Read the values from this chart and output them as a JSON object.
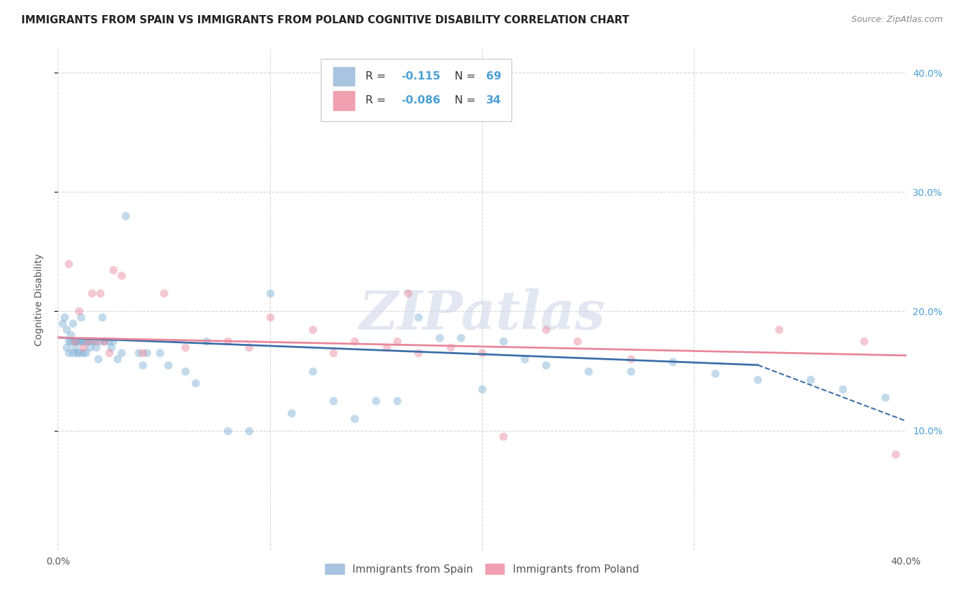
{
  "title": "IMMIGRANTS FROM SPAIN VS IMMIGRANTS FROM POLAND COGNITIVE DISABILITY CORRELATION CHART",
  "source": "Source: ZipAtlas.com",
  "ylabel": "Cognitive Disability",
  "right_yticks": [
    0.1,
    0.2,
    0.3,
    0.4
  ],
  "right_ytick_labels": [
    "10.0%",
    "20.0%",
    "30.0%",
    "40.0%"
  ],
  "xlim": [
    0.0,
    0.4
  ],
  "ylim": [
    0.0,
    0.42
  ],
  "spain_color": "#7bafd4",
  "poland_color": "#e8869a",
  "spain_line_color": "#3a6ea8",
  "poland_line_color": "#e8869a",
  "spain_scatter_x": [
    0.002,
    0.003,
    0.004,
    0.004,
    0.005,
    0.005,
    0.006,
    0.006,
    0.007,
    0.007,
    0.008,
    0.008,
    0.009,
    0.009,
    0.01,
    0.01,
    0.011,
    0.011,
    0.012,
    0.012,
    0.013,
    0.013,
    0.014,
    0.015,
    0.016,
    0.017,
    0.018,
    0.019,
    0.02,
    0.021,
    0.022,
    0.024,
    0.025,
    0.026,
    0.028,
    0.03,
    0.032,
    0.038,
    0.04,
    0.042,
    0.048,
    0.052,
    0.06,
    0.065,
    0.07,
    0.08,
    0.09,
    0.1,
    0.11,
    0.12,
    0.13,
    0.14,
    0.15,
    0.16,
    0.17,
    0.18,
    0.19,
    0.2,
    0.21,
    0.22,
    0.23,
    0.25,
    0.27,
    0.29,
    0.31,
    0.33,
    0.355,
    0.37,
    0.39
  ],
  "spain_scatter_y": [
    0.19,
    0.195,
    0.185,
    0.17,
    0.175,
    0.165,
    0.175,
    0.18,
    0.19,
    0.165,
    0.17,
    0.175,
    0.165,
    0.175,
    0.175,
    0.165,
    0.175,
    0.195,
    0.175,
    0.165,
    0.175,
    0.165,
    0.175,
    0.17,
    0.175,
    0.175,
    0.17,
    0.16,
    0.175,
    0.195,
    0.175,
    0.175,
    0.17,
    0.175,
    0.16,
    0.165,
    0.28,
    0.165,
    0.155,
    0.165,
    0.165,
    0.155,
    0.15,
    0.14,
    0.175,
    0.1,
    0.1,
    0.215,
    0.115,
    0.15,
    0.125,
    0.11,
    0.125,
    0.125,
    0.195,
    0.178,
    0.178,
    0.135,
    0.175,
    0.16,
    0.155,
    0.15,
    0.15,
    0.158,
    0.148,
    0.143,
    0.143,
    0.135,
    0.128
  ],
  "poland_scatter_x": [
    0.005,
    0.008,
    0.01,
    0.012,
    0.014,
    0.016,
    0.018,
    0.02,
    0.022,
    0.024,
    0.026,
    0.03,
    0.04,
    0.05,
    0.06,
    0.08,
    0.09,
    0.1,
    0.12,
    0.13,
    0.14,
    0.155,
    0.16,
    0.165,
    0.17,
    0.185,
    0.2,
    0.21,
    0.23,
    0.245,
    0.27,
    0.34,
    0.38,
    0.395
  ],
  "poland_scatter_y": [
    0.24,
    0.175,
    0.2,
    0.17,
    0.175,
    0.215,
    0.175,
    0.215,
    0.175,
    0.165,
    0.235,
    0.23,
    0.165,
    0.215,
    0.17,
    0.175,
    0.17,
    0.195,
    0.185,
    0.165,
    0.175,
    0.17,
    0.175,
    0.215,
    0.165,
    0.17,
    0.165,
    0.095,
    0.185,
    0.175,
    0.16,
    0.185,
    0.175,
    0.08
  ],
  "spain_trend_start_x": 0.0,
  "spain_trend_start_y": 0.178,
  "spain_trend_end_x": 0.33,
  "spain_trend_end_y": 0.155,
  "spain_trend_dashed_end_x": 0.4,
  "spain_trend_dashed_end_y": 0.108,
  "poland_trend_start_x": 0.0,
  "poland_trend_start_y": 0.178,
  "poland_trend_end_x": 0.4,
  "poland_trend_end_y": 0.163,
  "background_color": "#ffffff",
  "grid_color": "#cccccc",
  "title_fontsize": 11,
  "axis_label_fontsize": 10,
  "tick_label_fontsize": 10,
  "scatter_alpha": 0.45,
  "scatter_size": 75
}
